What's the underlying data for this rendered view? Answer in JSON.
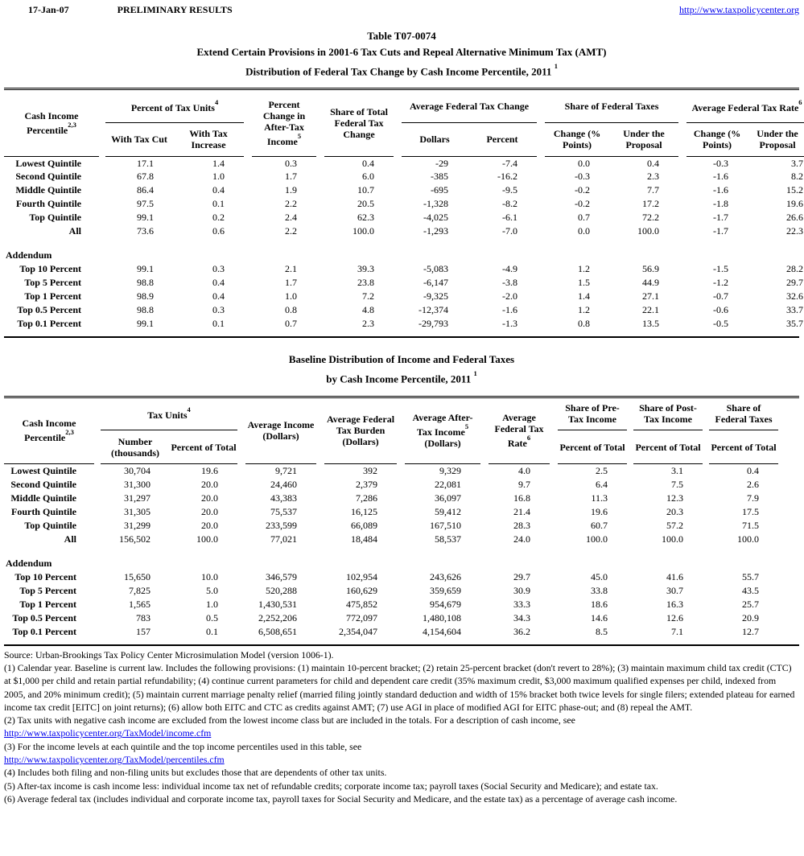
{
  "page_header": {
    "date": "17-Jan-07",
    "status": "PRELIMINARY RESULTS",
    "url": "http://www.taxpolicycenter.org"
  },
  "table1": {
    "titles": [
      "Table T07-0074",
      "Extend Certain Provisions in 2001-6 Tax Cuts and Repeal Alternative Minimum Tax (AMT)",
      "Distribution of Federal Tax Change by Cash Income Percentile, 2011"
    ],
    "title_sup": "1",
    "header": {
      "row_label": {
        "text": "Cash Income Percentile",
        "sup": "2,3"
      },
      "group_tax_units": {
        "text": "Percent of Tax Units",
        "sup": "4",
        "subs": [
          "With Tax Cut",
          "With Tax Increase"
        ]
      },
      "col_pct_change": {
        "text": "Percent Change in After-Tax Income",
        "sup": "5"
      },
      "col_share_total": {
        "text": "Share of Total Federal Tax Change"
      },
      "group_avg_change": {
        "text": "Average Federal Tax Change",
        "subs": [
          "Dollars",
          "Percent"
        ]
      },
      "group_share_taxes": {
        "text": "Share of Federal Taxes",
        "subs": [
          "Change (% Points)",
          "Under the Proposal"
        ]
      },
      "group_avg_rate": {
        "text": "Average Federal Tax Rate",
        "sup": "6",
        "subs": [
          "Change (% Points)",
          "Under the Proposal"
        ]
      }
    },
    "rows": [
      {
        "label": "Lowest Quintile",
        "values": [
          "17.1",
          "1.4",
          "0.3",
          "0.4",
          "-29",
          "-7.4",
          "0.0",
          "0.4",
          "-0.3",
          "3.7"
        ]
      },
      {
        "label": "Second Quintile",
        "values": [
          "67.8",
          "1.0",
          "1.7",
          "6.0",
          "-385",
          "-16.2",
          "-0.3",
          "2.3",
          "-1.6",
          "8.2"
        ]
      },
      {
        "label": "Middle Quintile",
        "values": [
          "86.4",
          "0.4",
          "1.9",
          "10.7",
          "-695",
          "-9.5",
          "-0.2",
          "7.7",
          "-1.6",
          "15.2"
        ]
      },
      {
        "label": "Fourth Quintile",
        "values": [
          "97.5",
          "0.1",
          "2.2",
          "20.5",
          "-1,328",
          "-8.2",
          "-0.2",
          "17.2",
          "-1.8",
          "19.6"
        ]
      },
      {
        "label": "Top Quintile",
        "values": [
          "99.1",
          "0.2",
          "2.4",
          "62.3",
          "-4,025",
          "-6.1",
          "0.7",
          "72.2",
          "-1.7",
          "26.6"
        ]
      },
      {
        "label": "All",
        "values": [
          "73.6",
          "0.6",
          "2.2",
          "100.0",
          "-1,293",
          "-7.0",
          "0.0",
          "100.0",
          "-1.7",
          "22.3"
        ]
      }
    ],
    "addendum_label": "Addendum",
    "addendum_rows": [
      {
        "label": "Top 10 Percent",
        "values": [
          "99.1",
          "0.3",
          "2.1",
          "39.3",
          "-5,083",
          "-4.9",
          "1.2",
          "56.9",
          "-1.5",
          "28.2"
        ]
      },
      {
        "label": "Top 5 Percent",
        "values": [
          "98.8",
          "0.4",
          "1.7",
          "23.8",
          "-6,147",
          "-3.8",
          "1.5",
          "44.9",
          "-1.2",
          "29.7"
        ]
      },
      {
        "label": "Top 1 Percent",
        "values": [
          "98.9",
          "0.4",
          "1.0",
          "7.2",
          "-9,325",
          "-2.0",
          "1.4",
          "27.1",
          "-0.7",
          "32.6"
        ]
      },
      {
        "label": "Top 0.5 Percent",
        "values": [
          "98.8",
          "0.3",
          "0.8",
          "4.8",
          "-12,374",
          "-1.6",
          "1.2",
          "22.1",
          "-0.6",
          "33.7"
        ]
      },
      {
        "label": "Top 0.1 Percent",
        "values": [
          "99.1",
          "0.1",
          "0.7",
          "2.3",
          "-29,793",
          "-1.3",
          "0.8",
          "13.5",
          "-0.5",
          "35.7"
        ]
      }
    ]
  },
  "table2": {
    "titles": [
      "Baseline Distribution of Income and Federal Taxes",
      "by Cash Income Percentile, 2011"
    ],
    "title_sup": "1",
    "header": {
      "row_label": {
        "text": "Cash Income Percentile",
        "sup": "2,3"
      },
      "group_tax_units": {
        "text": "Tax Units",
        "sup": "4",
        "subs": [
          "Number (thousands)",
          "Percent of Total"
        ]
      },
      "col_avg_income": {
        "text": "Average Income (Dollars)"
      },
      "col_avg_burden": {
        "text": "Average Federal Tax Burden (Dollars)"
      },
      "col_avg_after": {
        "text": "Average After-Tax Income",
        "sup": "5",
        "tail": "(Dollars)"
      },
      "col_avg_rate": {
        "text": "Average Federal Tax Rate",
        "sup": "6"
      },
      "group_pre": {
        "text": "Share of Pre-Tax Income",
        "sub": "Percent of Total"
      },
      "group_post": {
        "text": "Share of Post-Tax Income",
        "sub": "Percent of Total"
      },
      "group_fed": {
        "text": "Share of Federal Taxes",
        "sub": "Percent of Total"
      }
    },
    "rows": [
      {
        "label": "Lowest Quintile",
        "values": [
          "30,704",
          "19.6",
          "9,721",
          "392",
          "9,329",
          "4.0",
          "2.5",
          "3.1",
          "0.4"
        ]
      },
      {
        "label": "Second Quintile",
        "values": [
          "31,300",
          "20.0",
          "24,460",
          "2,379",
          "22,081",
          "9.7",
          "6.4",
          "7.5",
          "2.6"
        ]
      },
      {
        "label": "Middle Quintile",
        "values": [
          "31,297",
          "20.0",
          "43,383",
          "7,286",
          "36,097",
          "16.8",
          "11.3",
          "12.3",
          "7.9"
        ]
      },
      {
        "label": "Fourth Quintile",
        "values": [
          "31,305",
          "20.0",
          "75,537",
          "16,125",
          "59,412",
          "21.4",
          "19.6",
          "20.3",
          "17.5"
        ]
      },
      {
        "label": "Top Quintile",
        "values": [
          "31,299",
          "20.0",
          "233,599",
          "66,089",
          "167,510",
          "28.3",
          "60.7",
          "57.2",
          "71.5"
        ]
      },
      {
        "label": "All",
        "values": [
          "156,502",
          "100.0",
          "77,021",
          "18,484",
          "58,537",
          "24.0",
          "100.0",
          "100.0",
          "100.0"
        ]
      }
    ],
    "addendum_label": "Addendum",
    "addendum_rows": [
      {
        "label": "Top 10 Percent",
        "values": [
          "15,650",
          "10.0",
          "346,579",
          "102,954",
          "243,626",
          "29.7",
          "45.0",
          "41.6",
          "55.7"
        ]
      },
      {
        "label": "Top 5 Percent",
        "values": [
          "7,825",
          "5.0",
          "520,288",
          "160,629",
          "359,659",
          "30.9",
          "33.8",
          "30.7",
          "43.5"
        ]
      },
      {
        "label": "Top 1 Percent",
        "values": [
          "1,565",
          "1.0",
          "1,430,531",
          "475,852",
          "954,679",
          "33.3",
          "18.6",
          "16.3",
          "25.7"
        ]
      },
      {
        "label": "Top 0.5 Percent",
        "values": [
          "783",
          "0.5",
          "2,252,206",
          "772,097",
          "1,480,108",
          "34.3",
          "14.6",
          "12.6",
          "20.9"
        ]
      },
      {
        "label": "Top 0.1 Percent",
        "values": [
          "157",
          "0.1",
          "6,508,651",
          "2,354,047",
          "4,154,604",
          "36.2",
          "8.5",
          "7.1",
          "12.7"
        ]
      }
    ]
  },
  "footnotes": {
    "source": "Source: Urban-Brookings Tax Policy Center Microsimulation Model (version 1006-1).",
    "note1": "(1) Calendar year.  Baseline is current law. Includes the following provisions:  (1) maintain 10-percent bracket; (2) retain 25-percent bracket (don't revert to 28%); (3) maintain maximum child tax credit (CTC) at $1,000 per child and retain partial refundability; (4) continue current parameters for child and dependent care credit (35% maximum credit, $3,000 maximum qualified expenses per child, indexed from 2005, and 20% minimum credit); (5) maintain current marriage penalty relief (married filing jointly standard deduction and width of 15% bracket both twice levels for single filers; extended plateau for earned income tax credit [EITC] on joint returns); (6) allow both EITC and CTC as credits against AMT; (7) use AGI in place of modified AGI for EITC phase-out; and (8) repeal the AMT.",
    "note2": "(2) Tax units with negative cash income are excluded from the lowest income class but are included in the totals. For a description of cash income, see",
    "link_income": "http://www.taxpolicycenter.org/TaxModel/income.cfm",
    "note3": "(3) For the income levels at each quintile and the top income percentiles used in this table, see",
    "link_percentiles": "http://www.taxpolicycenter.org/TaxModel/percentiles.cfm",
    "note4": "(4) Includes both filing and non-filing units but excludes those that are dependents of other tax units.",
    "note5": "(5) After-tax income is cash income less: individual income tax net of refundable credits; corporate income tax; payroll taxes (Social Security and Medicare); and estate tax.",
    "note6": "(6) Average federal tax (includes individual and corporate income tax, payroll taxes for Social Security and Medicare, and the estate tax) as a percentage of average cash income."
  }
}
